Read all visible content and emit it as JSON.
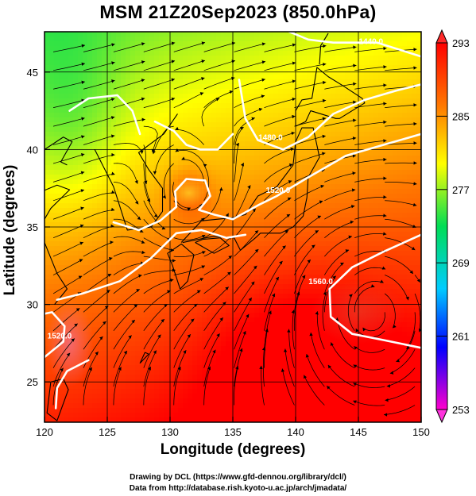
{
  "title": "MSM 21Z20Sep2023 (850.0hPa)",
  "credits": {
    "line1": "Drawing by DCL (https://www.gfd-dennou.org/library/dcl/)",
    "line2": "Data from http://database.rish.kyoto-u.ac.jp/arch/jmadata/"
  },
  "chart_data": {
    "type": "heatmap",
    "title": "MSM 21Z20Sep2023 (850.0hPa)",
    "xlabel": "Longitude (degrees)",
    "ylabel": "Latitude  (degrees)",
    "xlim": [
      120,
      150
    ],
    "ylim": [
      22.4,
      47.6
    ],
    "xticks": [
      120,
      125,
      130,
      135,
      140,
      145,
      150
    ],
    "yticks": [
      25,
      30,
      35,
      40,
      45
    ],
    "grid": true,
    "colorbar": {
      "min": 253,
      "max": 293,
      "ticks": [
        293,
        285,
        277,
        269,
        261,
        253
      ],
      "colors": [
        "#ff00cc",
        "#0000ff",
        "#00ccff",
        "#00dd55",
        "#ffff00",
        "#ff7700",
        "#ff0000"
      ]
    },
    "contour_labels": [
      {
        "text": "1440.0",
        "lon": 146.0,
        "lat": 46.8
      },
      {
        "text": "1480.0",
        "lon": 138.0,
        "lat": 40.6
      },
      {
        "text": "1520.0",
        "lon": 138.6,
        "lat": 37.2
      },
      {
        "text": "1560.0",
        "lon": 142.0,
        "lat": 31.3
      },
      {
        "text": "1520.0",
        "lon": 121.2,
        "lat": 27.8
      }
    ],
    "field_note": "Temperature (K) field with geopotential height contours (m) and wind streamlines"
  }
}
